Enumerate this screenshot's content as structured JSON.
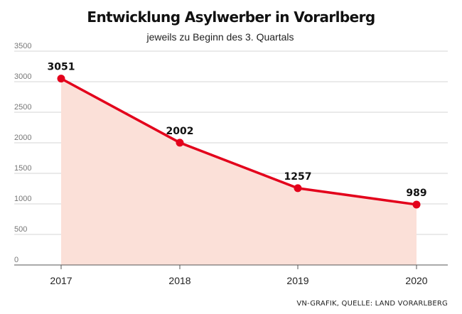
{
  "chart_data": {
    "type": "line",
    "title": "Entwicklung Asylwerber in Vorarlberg",
    "subtitle": "jeweils zu Beginn des 3. Quartals",
    "categories": [
      "2017",
      "2018",
      "2019",
      "2020"
    ],
    "series": [
      {
        "name": "Asylwerber",
        "values": [
          3051,
          2002,
          1257,
          989
        ]
      }
    ],
    "data_labels": [
      "3051",
      "2002",
      "1257",
      "989"
    ],
    "y_ticks": [
      0,
      500,
      1000,
      1500,
      2000,
      2500,
      3000,
      3500
    ],
    "ylim": [
      0,
      3500
    ],
    "xlabel": "",
    "ylabel": "",
    "grid": true,
    "source": "VN-GRAFIK, QUELLE: LAND VORARLBERG"
  },
  "colors": {
    "line": "#e3001b",
    "area": "#fbe0d8",
    "grid": "#d4d4d4",
    "axis": "#555555"
  }
}
